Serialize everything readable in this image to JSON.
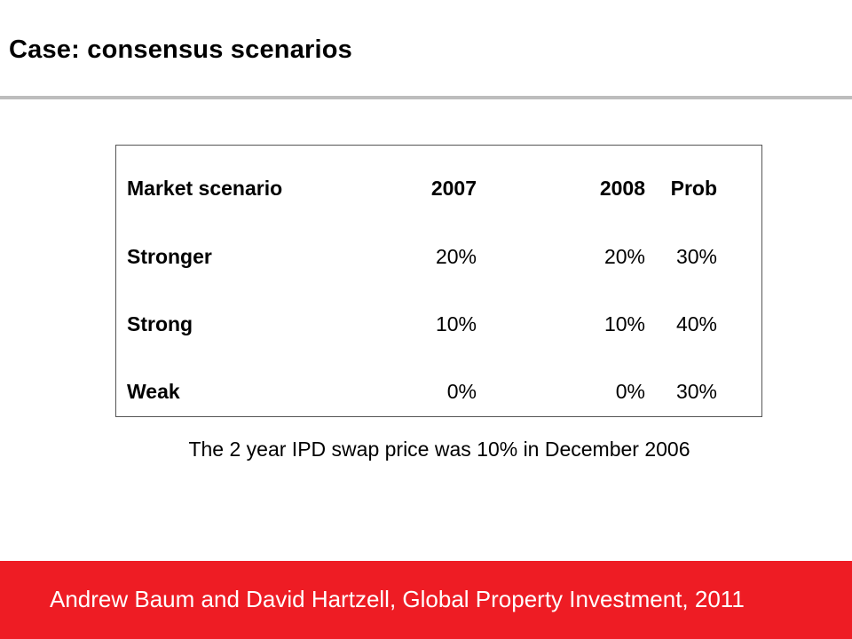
{
  "slide": {
    "title": "Case: consensus scenarios",
    "caption": "The 2 year IPD swap price was 10% in December 2006",
    "footer": "Andrew Baum and David Hartzell, Global Property Investment, 2011"
  },
  "table": {
    "headers": [
      "Market scenario",
      "2007",
      "2008",
      "Prob"
    ],
    "rows": [
      [
        "Stronger",
        "20%",
        "20%",
        "30%"
      ],
      [
        "Strong",
        "10%",
        "10%",
        "40%"
      ],
      [
        "Weak",
        "0%",
        "0%",
        "30%"
      ]
    ]
  },
  "colors": {
    "footer_bg": "#ee1c24",
    "rule": "#bdbdbd"
  }
}
